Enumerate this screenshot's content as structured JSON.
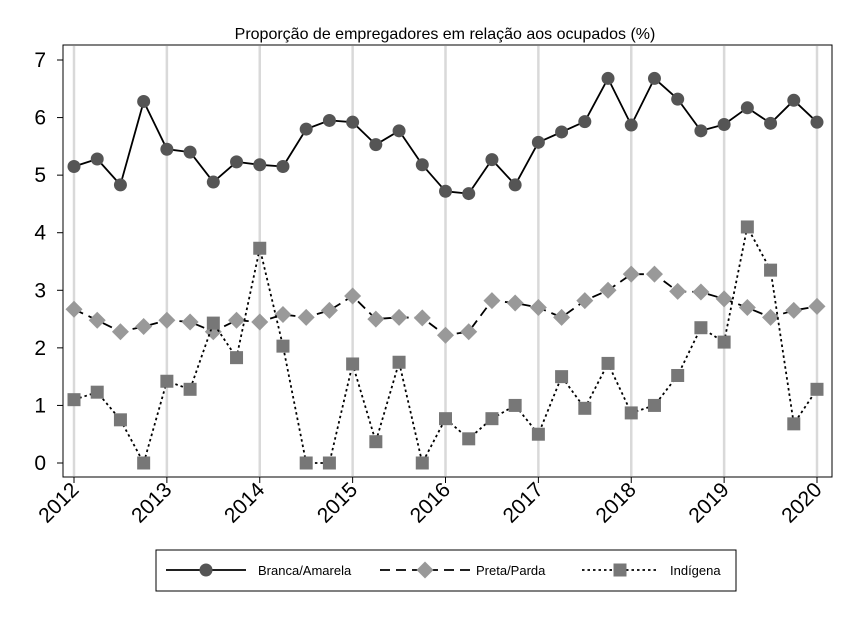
{
  "chart_data": {
    "type": "line",
    "title": "Proporção de empregadores em relação aos ocupados (%)",
    "xlabel": "",
    "ylabel": "",
    "xlim": [
      2012,
      2020
    ],
    "ylim": [
      0,
      7
    ],
    "x_ticks": [
      "2012",
      "2013",
      "2014",
      "2015",
      "2016",
      "2017",
      "2018",
      "2019",
      "2020"
    ],
    "y_ticks": [
      "0",
      "1",
      "2",
      "3",
      "4",
      "5",
      "6",
      "7"
    ],
    "grid": "vertical",
    "legend_position": "bottom",
    "x": [
      2012.0,
      2012.25,
      2012.5,
      2012.75,
      2013.0,
      2013.25,
      2013.5,
      2013.75,
      2014.0,
      2014.25,
      2014.5,
      2014.75,
      2015.0,
      2015.25,
      2015.5,
      2015.75,
      2016.0,
      2016.25,
      2016.5,
      2016.75,
      2017.0,
      2017.25,
      2017.5,
      2017.75,
      2018.0,
      2018.25,
      2018.5,
      2018.75,
      2019.0,
      2019.25,
      2019.5,
      2019.75,
      2020.0
    ],
    "series": [
      {
        "name": "Branca/Amarela",
        "marker": "circle",
        "line": "solid",
        "color": "#000000",
        "marker_color": "#555555",
        "values": [
          5.15,
          5.28,
          4.83,
          6.28,
          5.45,
          5.4,
          4.88,
          5.23,
          5.18,
          5.15,
          5.8,
          5.95,
          5.92,
          5.53,
          5.77,
          5.18,
          4.72,
          4.68,
          5.27,
          4.83,
          5.57,
          5.75,
          5.93,
          6.68,
          5.87,
          6.68,
          6.32,
          5.77,
          5.88,
          6.17,
          5.9,
          6.3,
          5.92
        ]
      },
      {
        "name": "Preta/Parda",
        "marker": "diamond",
        "line": "dashed",
        "color": "#000000",
        "marker_color": "#999999",
        "values": [
          2.67,
          2.48,
          2.28,
          2.37,
          2.48,
          2.45,
          2.28,
          2.48,
          2.45,
          2.58,
          2.53,
          2.65,
          2.9,
          2.5,
          2.53,
          2.52,
          2.22,
          2.28,
          2.82,
          2.78,
          2.7,
          2.53,
          2.82,
          3.0,
          3.28,
          3.28,
          2.98,
          2.97,
          2.85,
          2.7,
          2.53,
          2.65,
          2.72
        ]
      },
      {
        "name": "Indígena",
        "marker": "square",
        "line": "dotted",
        "color": "#000000",
        "marker_color": "#777777",
        "values": [
          1.1,
          1.23,
          0.75,
          0.0,
          1.42,
          1.28,
          2.43,
          1.83,
          3.73,
          2.03,
          0.0,
          0.0,
          1.72,
          0.37,
          1.75,
          0.0,
          0.77,
          0.42,
          0.77,
          1.0,
          0.5,
          1.5,
          0.95,
          1.73,
          0.87,
          1.0,
          1.52,
          2.35,
          2.1,
          4.1,
          3.35,
          0.68,
          1.28
        ]
      }
    ]
  }
}
